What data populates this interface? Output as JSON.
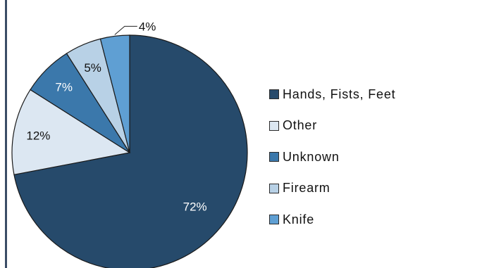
{
  "chart_data": {
    "type": "pie",
    "slices": [
      {
        "label": "Hands, Fists, Feet",
        "value": 72,
        "value_label": "72%",
        "color": "#264a6b",
        "label_color": "#ffffff"
      },
      {
        "label": "Other",
        "value": 12,
        "value_label": "12%",
        "color": "#dce7f2",
        "label_color": "#111111"
      },
      {
        "label": "Unknown",
        "value": 7,
        "value_label": "7%",
        "color": "#3b78ab",
        "label_color": "#ffffff"
      },
      {
        "label": "Firearm",
        "value": 5,
        "value_label": "5%",
        "color": "#b8d1e6",
        "label_color": "#111111"
      },
      {
        "label": "Knife",
        "value": 4,
        "value_label": "4%",
        "color": "#5f9fd3",
        "label_color": "#111111"
      }
    ],
    "legend_position": "right",
    "start_angle": "12 o'clock",
    "direction": "clockwise for first slice, remaining slices counter-clockwise order from top"
  }
}
